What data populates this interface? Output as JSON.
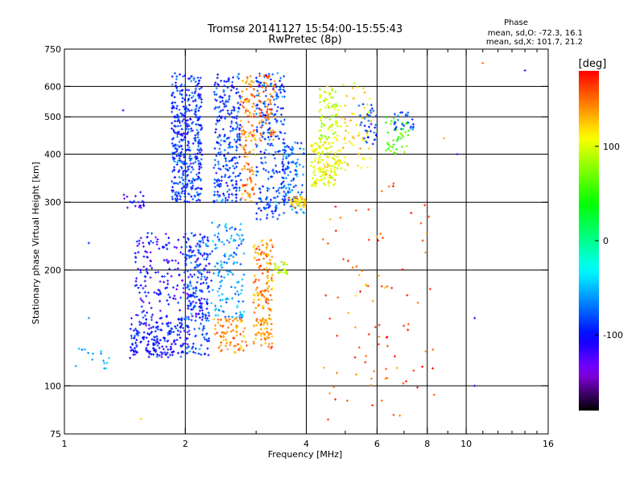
{
  "chart_data": {
    "type": "scatter",
    "title": "Tromsø 20141127 15:54:00-15:55:43",
    "subtitle": "RwPretec (8p)",
    "xlabel": "Frequency [MHz]",
    "ylabel": "Stationary phase Virtual Height [km]",
    "x_scale": "log",
    "y_scale": "log",
    "xlim": [
      1,
      16
    ],
    "ylim": [
      75,
      750
    ],
    "x_ticks": [
      1,
      2,
      4,
      6,
      8,
      10,
      16
    ],
    "x_tick_labels": [
      "1",
      "2",
      "4",
      "6",
      "8",
      "10",
      "16"
    ],
    "x_minor_ticks": [
      3,
      5,
      7,
      9,
      11,
      12,
      13,
      14,
      15
    ],
    "y_ticks": [
      75,
      100,
      200,
      300,
      400,
      500,
      600,
      750
    ],
    "y_tick_labels": [
      "75",
      "100",
      "200",
      "300",
      "400",
      "500",
      "600",
      "750"
    ],
    "gridlines_x": [
      2,
      4,
      6,
      8,
      10
    ],
    "gridlines_y": [
      100,
      200,
      300,
      400,
      500,
      600
    ],
    "grid": true,
    "stats": {
      "heading": "Phase",
      "line_o": "mean, sd,O: -72.3, 16.1",
      "line_x": "mean, sd,X: 101.7, 21.2"
    },
    "colorbar": {
      "label": "[deg]",
      "range": [
        -180,
        180
      ],
      "ticks": [
        100,
        0,
        -100
      ],
      "tick_labels": [
        "100",
        "0",
        "-100"
      ],
      "colormap": "rainbow"
    },
    "clusters": [
      {
        "f": [
          1.85,
          2.2
        ],
        "h": [
          300,
          650
        ],
        "phase": -90,
        "n": 420
      },
      {
        "f": [
          2.35,
          2.75
        ],
        "h": [
          300,
          650
        ],
        "phase": -88,
        "n": 260
      },
      {
        "f": [
          2.75,
          3.0
        ],
        "h": [
          300,
          640
        ],
        "phase": 145,
        "n": 130
      },
      {
        "f": [
          3.0,
          3.55
        ],
        "h": [
          270,
          650
        ],
        "phase": -85,
        "n": 240
      },
      {
        "f": [
          3.05,
          3.35
        ],
        "h": [
          430,
          640
        ],
        "phase": 150,
        "n": 70
      },
      {
        "f": [
          3.5,
          3.95
        ],
        "h": [
          280,
          430
        ],
        "phase": -75,
        "n": 110
      },
      {
        "f": [
          3.6,
          4.0
        ],
        "h": [
          290,
          310
        ],
        "phase": 120,
        "n": 45
      },
      {
        "f": [
          4.1,
          4.8
        ],
        "h": [
          330,
          430
        ],
        "phase": 105,
        "n": 140
      },
      {
        "f": [
          4.3,
          4.8
        ],
        "h": [
          430,
          600
        ],
        "phase": 90,
        "n": 80
      },
      {
        "f": [
          4.8,
          5.8
        ],
        "h": [
          360,
          620
        ],
        "phase": 115,
        "n": 70
      },
      {
        "f": [
          5.4,
          6.0
        ],
        "h": [
          420,
          550
        ],
        "phase": -85,
        "n": 35
      },
      {
        "f": [
          6.3,
          7.2
        ],
        "h": [
          400,
          500
        ],
        "phase": 60,
        "n": 45
      },
      {
        "f": [
          6.6,
          7.4
        ],
        "h": [
          460,
          520
        ],
        "phase": -80,
        "n": 25
      },
      {
        "f": [
          1.5,
          2.3
        ],
        "h": [
          150,
          250
        ],
        "phase": -105,
        "n": 230
      },
      {
        "f": [
          1.45,
          2.05
        ],
        "h": [
          118,
          150
        ],
        "phase": -100,
        "n": 210
      },
      {
        "f": [
          2.0,
          2.3
        ],
        "h": [
          120,
          250
        ],
        "phase": -80,
        "n": 160
      },
      {
        "f": [
          2.3,
          2.8
        ],
        "h": [
          150,
          270
        ],
        "phase": -60,
        "n": 140
      },
      {
        "f": [
          2.35,
          2.85
        ],
        "h": [
          122,
          150
        ],
        "phase": 140,
        "n": 80
      },
      {
        "f": [
          2.95,
          3.3
        ],
        "h": [
          125,
          240
        ],
        "phase": 140,
        "n": 180
      },
      {
        "f": [
          3.3,
          3.6
        ],
        "h": [
          195,
          210
        ],
        "phase": 90,
        "n": 25
      },
      {
        "f": [
          4.4,
          6.5
        ],
        "h": [
          80,
          300
        ],
        "phase": 150,
        "n": 50
      },
      {
        "f": [
          5.6,
          8.5
        ],
        "h": [
          80,
          350
        ],
        "phase": 160,
        "n": 45
      },
      {
        "f": [
          1.05,
          1.3
        ],
        "h": [
          110,
          125
        ],
        "phase": -60,
        "n": 15
      },
      {
        "f": [
          1.4,
          1.6
        ],
        "h": [
          290,
          320
        ],
        "phase": -110,
        "n": 20
      }
    ],
    "isolated_points": [
      {
        "f": 14,
        "h": 660,
        "phase": -120
      },
      {
        "f": 11,
        "h": 690,
        "phase": 150
      },
      {
        "f": 9.5,
        "h": 400,
        "phase": -110
      },
      {
        "f": 10.5,
        "h": 150,
        "phase": -100
      },
      {
        "f": 10.5,
        "h": 100,
        "phase": -110
      },
      {
        "f": 8.8,
        "h": 440,
        "phase": 130
      },
      {
        "f": 1.15,
        "h": 150,
        "phase": -60
      },
      {
        "f": 1.15,
        "h": 235,
        "phase": -90
      },
      {
        "f": 1.4,
        "h": 520,
        "phase": -100
      },
      {
        "f": 1.55,
        "h": 82,
        "phase": 120
      }
    ]
  }
}
